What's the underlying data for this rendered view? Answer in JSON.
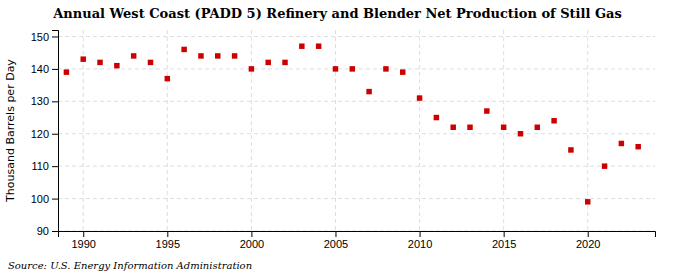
{
  "chart_data": {
    "type": "scatter",
    "title": "Annual West Coast (PADD 5) Refinery and Blender Net Production of Still Gas",
    "y_label": "Thousand Barrels per Day",
    "annotations": [
      "Source: U.S. Energy Information Administration"
    ],
    "x": [
      1989,
      1990,
      1991,
      1992,
      1993,
      1994,
      1995,
      1996,
      1997,
      1998,
      1999,
      2000,
      2001,
      2002,
      2003,
      2004,
      2005,
      2006,
      2007,
      2008,
      2009,
      2010,
      2011,
      2012,
      2013,
      2014,
      2015,
      2016,
      2017,
      2018,
      2019,
      2020,
      2021,
      2022,
      2023
    ],
    "values": [
      139,
      143,
      142,
      141,
      144,
      142,
      137,
      146,
      144,
      144,
      144,
      140,
      142,
      142,
      147,
      147,
      140,
      140,
      133,
      140,
      139,
      131,
      125,
      122,
      122,
      127,
      122,
      120,
      122,
      124,
      115,
      99,
      110,
      117,
      116
    ],
    "color": "#cc0000",
    "marker": "square",
    "xlim": [
      1988.5,
      2024
    ],
    "xticks": [
      1990,
      1995,
      2000,
      2005,
      2010,
      2015,
      2020
    ],
    "ylim": [
      90,
      152
    ],
    "yticks": [
      90,
      100,
      110,
      120,
      130,
      140,
      150
    ],
    "grid": true
  }
}
